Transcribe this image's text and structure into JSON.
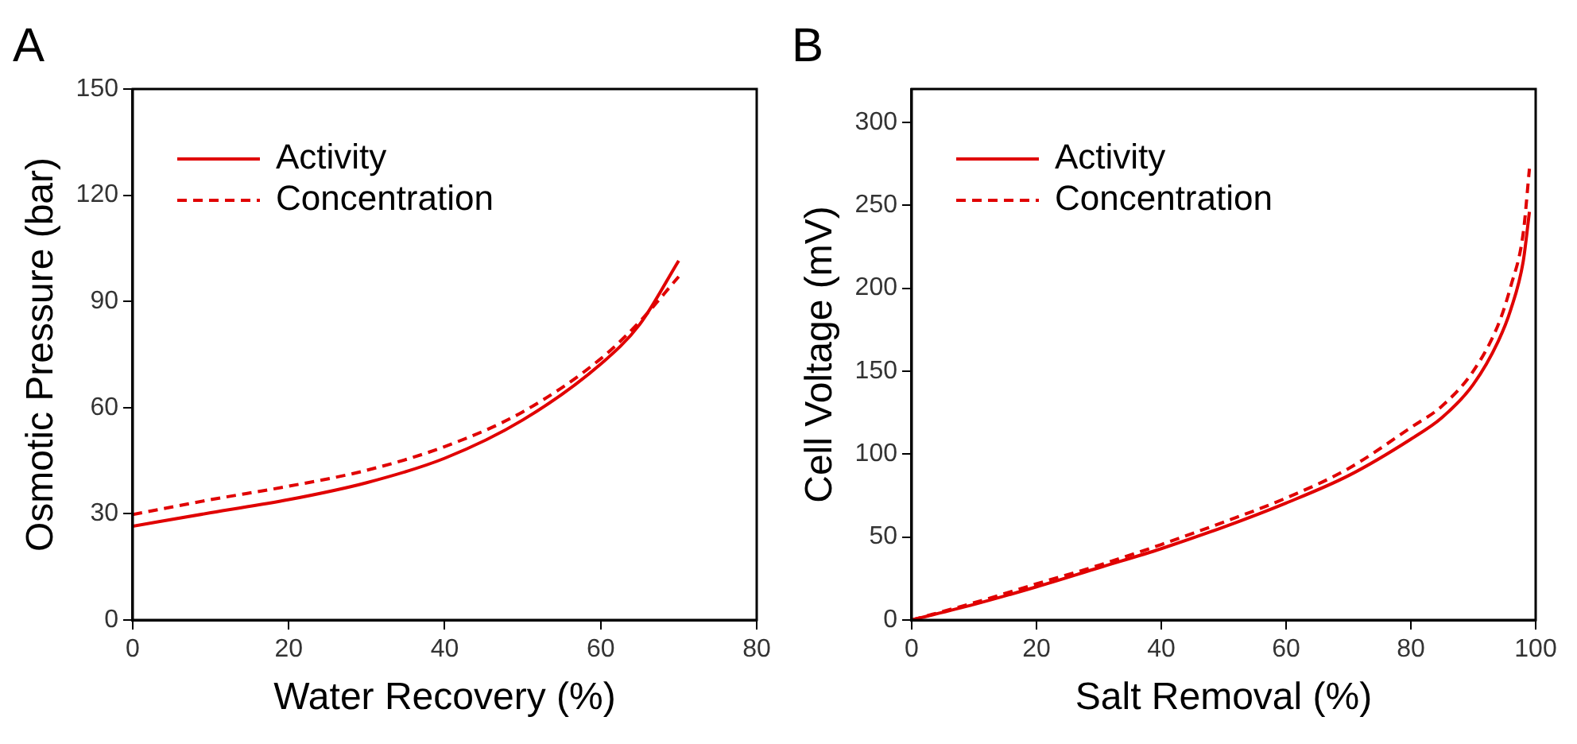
{
  "chart_data": [
    {
      "type": "line",
      "title": "A",
      "xlabel": "Water Recovery (%)",
      "ylabel": "Osmotic Pressure (bar)",
      "xlim": [
        0,
        80
      ],
      "xticks": [
        0,
        20,
        40,
        60,
        80
      ],
      "ylim": [
        0,
        150
      ],
      "yticks": [
        0,
        30,
        60,
        90,
        120,
        150
      ],
      "grid": false,
      "legend": "top left",
      "marker": "none",
      "series": [
        {
          "name": "Activity",
          "color": "#e00000",
          "line_style": "solid",
          "x": [
            0,
            10,
            20,
            30,
            40,
            50,
            60,
            65,
            70
          ],
          "values": [
            26.5,
            30.3,
            34,
            38.8,
            45.7,
            56.5,
            72.3,
            83.5,
            101.5
          ]
        },
        {
          "name": "Concentration",
          "color": "#e00000",
          "line_style": "dashed",
          "x": [
            0,
            10,
            20,
            30,
            40,
            50,
            60,
            65,
            70
          ],
          "values": [
            29.8,
            34,
            37.8,
            42.3,
            49,
            58.8,
            73.8,
            84.3,
            97
          ]
        }
      ]
    },
    {
      "type": "line",
      "title": "B",
      "xlabel": "Salt Removal (%)",
      "ylabel": "Cell Voltage (mV)",
      "xlim": [
        0,
        100
      ],
      "xticks": [
        0,
        20,
        40,
        60,
        80,
        100
      ],
      "ylim": [
        0,
        320
      ],
      "yticks": [
        0,
        50,
        100,
        150,
        200,
        250,
        300
      ],
      "grid": false,
      "legend": "top left",
      "marker": "none",
      "series": [
        {
          "name": "Activity",
          "color": "#e00000",
          "line_style": "solid",
          "x": [
            0,
            10,
            20,
            30,
            40,
            50,
            60,
            70,
            80,
            85,
            90,
            94,
            96,
            98,
            99
          ],
          "values": [
            0,
            9.4,
            20,
            31.5,
            43,
            56,
            70.5,
            87,
            109,
            122,
            142,
            168,
            187,
            216,
            246
          ]
        },
        {
          "name": "Concentration",
          "color": "#e00000",
          "line_style": "dashed",
          "x": [
            0,
            10,
            20,
            30,
            40,
            50,
            60,
            70,
            80,
            85,
            90,
            94,
            96,
            98,
            99
          ],
          "values": [
            0,
            10.4,
            21.8,
            33,
            45.5,
            59,
            73.5,
            91.3,
            116,
            129,
            150,
            178,
            201,
            233,
            272
          ]
        }
      ]
    }
  ]
}
